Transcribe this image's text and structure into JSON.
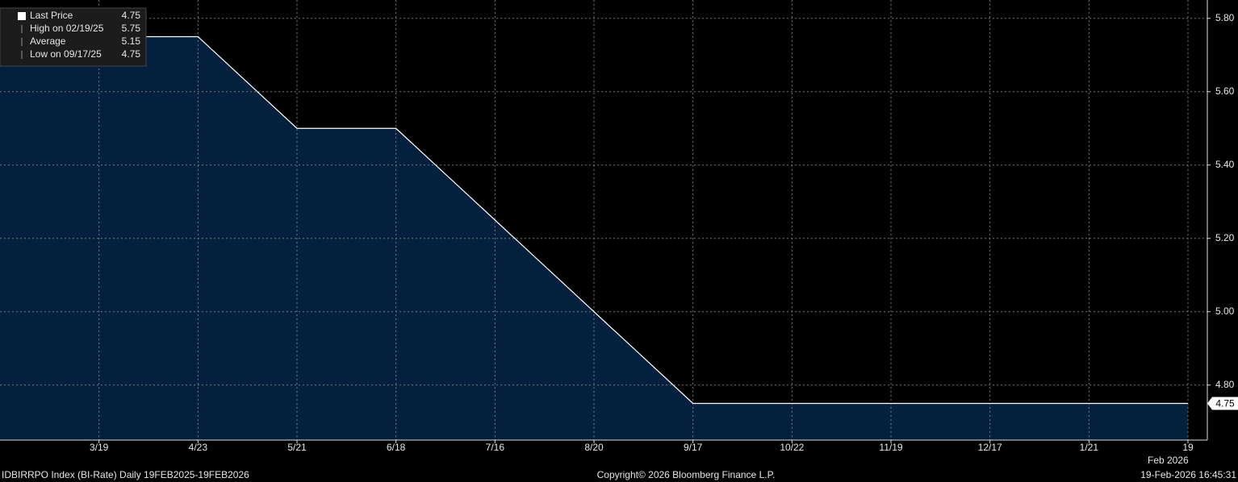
{
  "chart_data": {
    "type": "area",
    "categories": [
      null,
      "3/19",
      "4/23",
      "5/21",
      "6/18",
      "7/16",
      "8/20",
      "9/17",
      "10/22",
      "11/19",
      "12/17",
      "1/21",
      "19"
    ],
    "x_period_label": "Feb 2026",
    "series": [
      {
        "name": "Last Price",
        "color": "#ffffff",
        "fill": "#04203f",
        "values": [
          5.75,
          5.75,
          5.75,
          5.5,
          5.5,
          5.25,
          5.0,
          4.75,
          4.75,
          4.75,
          4.75,
          4.75,
          4.75
        ]
      }
    ],
    "ylim": [
      4.65,
      5.85
    ],
    "yticks": [
      {
        "value": 4.8,
        "label": "4.80"
      },
      {
        "value": 5.0,
        "label": "5.00"
      },
      {
        "value": 5.2,
        "label": "5.20"
      },
      {
        "value": 5.4,
        "label": "5.40"
      },
      {
        "value": 5.6,
        "label": "5.60"
      },
      {
        "value": 5.8,
        "label": "5.80"
      }
    ],
    "grid": true,
    "last_value_label": "4.75",
    "legend_stats": [
      {
        "label": "Last Price",
        "value": 4.75
      },
      {
        "label": "High on 02/19/25",
        "value": 5.75
      },
      {
        "label": "Average",
        "value": 5.15
      },
      {
        "label": "Low on 09/17/25",
        "value": 4.75
      }
    ],
    "footer": {
      "left": "IDBIRRPO Index (BI-Rate) Daily 19FEB2025-19FEB2026",
      "center": "Copyright© 2026 Bloomberg Finance L.P.",
      "right": "19-Feb-2026 16:45:31"
    }
  }
}
